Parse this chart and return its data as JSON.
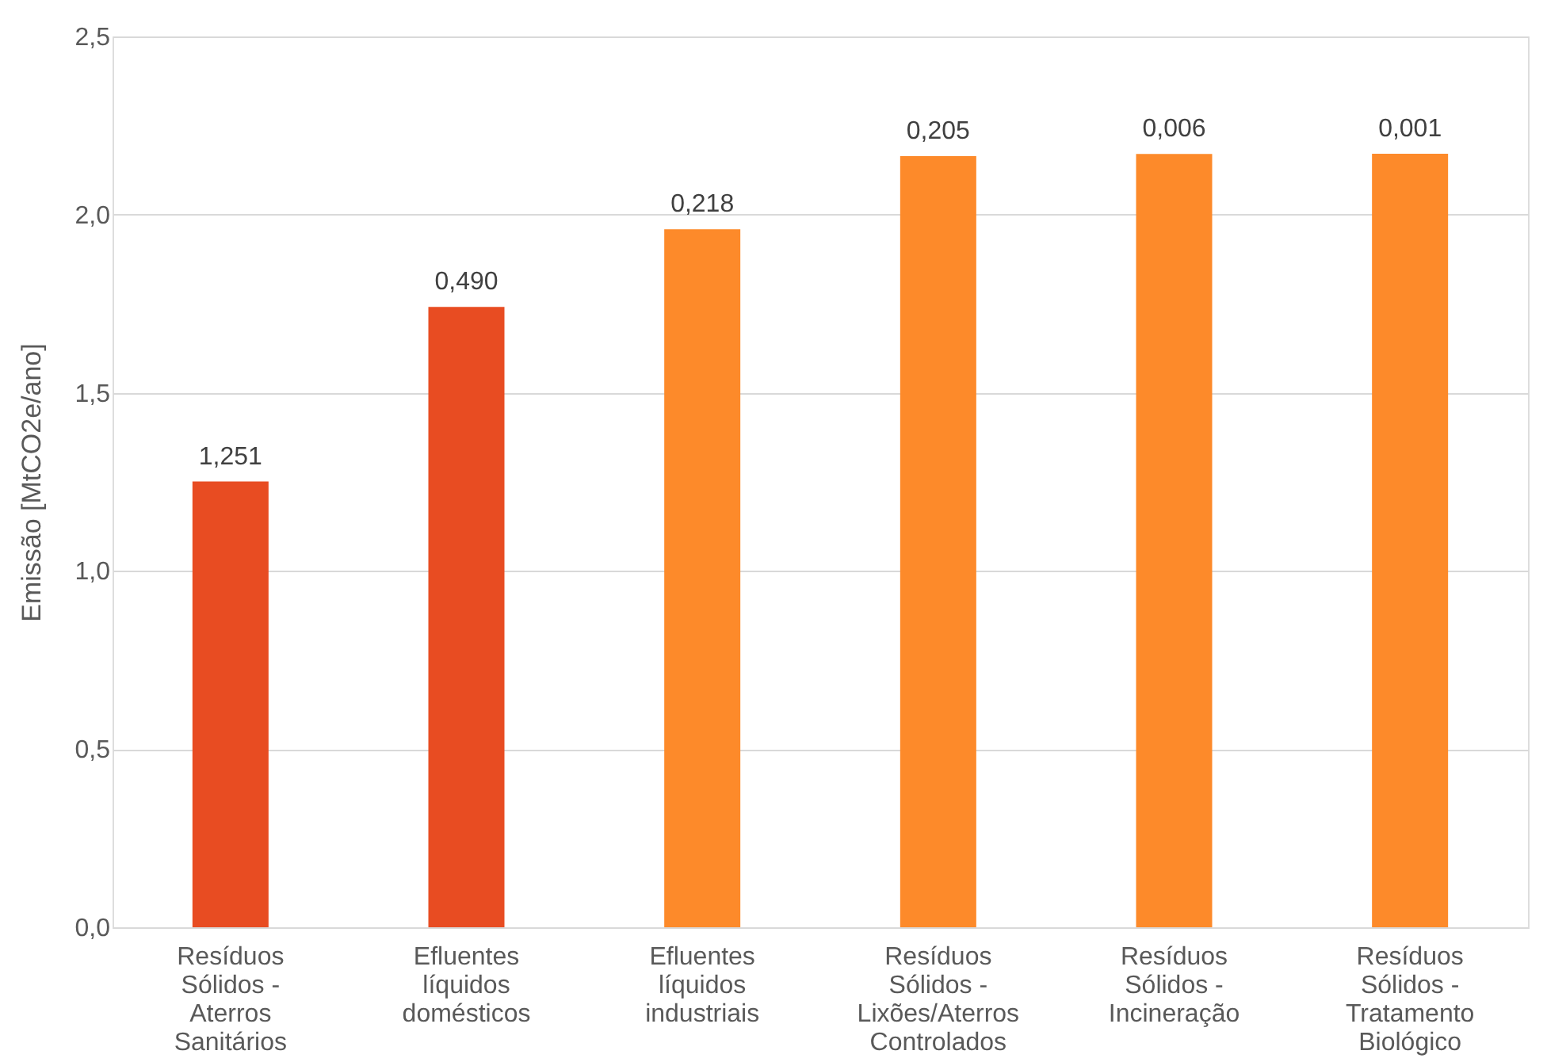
{
  "chart_data": {
    "type": "bar",
    "ylabel": "Emissão [MtCO2e/ano]",
    "categories": [
      "Resíduos Sólidos - Aterros Sanitários",
      "Efluentes líquidos domésticos",
      "Efluentes líquidos industriais",
      "Resíduos Sólidos - Lixões/Aterros Controlados",
      "Resíduos Sólidos - Incineração",
      "Resíduos Sólidos - Tratamento Biológico"
    ],
    "values": [
      1.251,
      1.741,
      1.959,
      2.164,
      2.17,
      2.171
    ],
    "annotations": [
      {
        "text": "1,251",
        "x": "Resíduos Sólidos - Aterros Sanitários",
        "y": 1.251
      },
      {
        "text": "0,490",
        "x": "Efluentes líquidos domésticos",
        "y": 1.741
      },
      {
        "text": "0,218",
        "x": "Efluentes líquidos industriais",
        "y": 1.959
      },
      {
        "text": "0,205",
        "x": "Resíduos Sólidos - Lixões/Aterros Controlados",
        "y": 2.164
      },
      {
        "text": "0,006",
        "x": "Resíduos Sólidos - Incineração",
        "y": 2.17
      },
      {
        "text": "0,001",
        "x": "Resíduos Sólidos - Tratamento Biológico",
        "y": 2.171
      }
    ],
    "colors": [
      "#e84c22",
      "#e84c22",
      "#fd8a2a",
      "#fd8a2a",
      "#fd8a2a",
      "#fd8a2a"
    ],
    "ylim": [
      0,
      2.5
    ],
    "yticks": [
      {
        "value": 0,
        "label": "0,0"
      },
      {
        "value": 0.5,
        "label": "0,5"
      },
      {
        "value": 1,
        "label": "1,0"
      },
      {
        "value": 1.5,
        "label": "1,5"
      },
      {
        "value": 2,
        "label": "2,0"
      },
      {
        "value": 2.5,
        "label": "2,5"
      }
    ],
    "grid": "y"
  }
}
